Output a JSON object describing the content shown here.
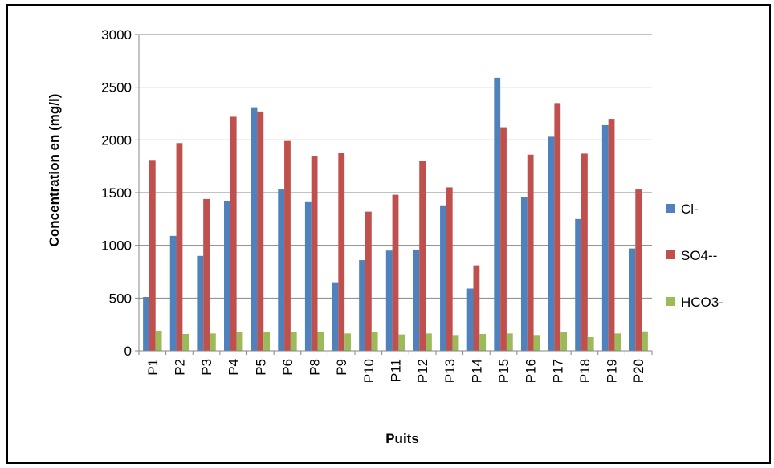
{
  "chart_data": {
    "type": "bar",
    "title": "",
    "xlabel": "Puits",
    "ylabel": "Concentration en (mg/l)",
    "ylim": [
      0,
      3000
    ],
    "yticks": [
      0,
      500,
      1000,
      1500,
      2000,
      2500,
      3000
    ],
    "grid": true,
    "legend_position": "right",
    "categories": [
      "P1",
      "P2",
      "P3",
      "P4",
      "P5",
      "P6",
      "P8",
      "P9",
      "P10",
      "P11",
      "P12",
      "P13",
      "P14",
      "P15",
      "P16",
      "P17",
      "P18",
      "P19",
      "P20"
    ],
    "series": [
      {
        "name": "Cl-",
        "color": "#4F81BD",
        "values": [
          510,
          1090,
          900,
          1420,
          2310,
          1530,
          1410,
          650,
          860,
          950,
          960,
          1380,
          590,
          2590,
          1460,
          2030,
          1250,
          2140,
          970
        ]
      },
      {
        "name": "SO4--",
        "color": "#C0504D",
        "values": [
          1810,
          1970,
          1440,
          2220,
          2270,
          1990,
          1850,
          1880,
          1320,
          1480,
          1800,
          1550,
          810,
          2120,
          1860,
          2350,
          1870,
          2200,
          1530
        ]
      },
      {
        "name": "HCO3-",
        "color": "#9BBB59",
        "values": [
          190,
          160,
          165,
          175,
          175,
          175,
          175,
          165,
          175,
          155,
          165,
          150,
          160,
          165,
          150,
          175,
          130,
          165,
          185
        ]
      }
    ]
  }
}
